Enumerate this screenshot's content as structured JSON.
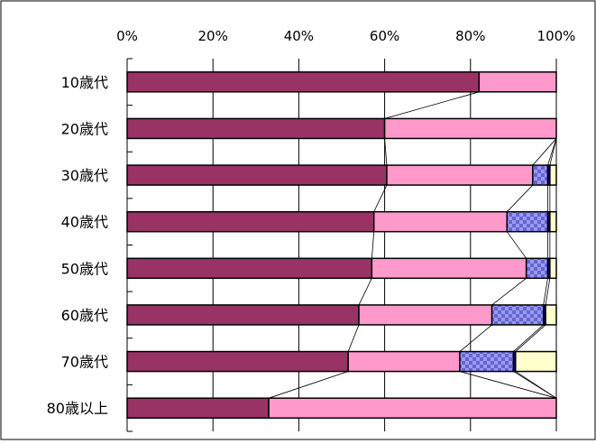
{
  "chart_data": {
    "type": "bar",
    "orientation": "horizontal",
    "stacked": true,
    "percent_stacked": true,
    "xlim": [
      0,
      100
    ],
    "x_ticks": [
      0,
      20,
      40,
      60,
      80,
      100
    ],
    "x_tick_labels": [
      "0%",
      "20%",
      "40%",
      "60%",
      "80%",
      "100%"
    ],
    "axis_position": "top",
    "grid": "vertical",
    "legend": "none",
    "series_lines": true,
    "categories": [
      "10歳代",
      "20歳代",
      "30歳代",
      "40歳代",
      "50歳代",
      "60歳代",
      "70歳代",
      "80歳以上"
    ],
    "series": [
      {
        "color": "#993366",
        "pattern": "solid",
        "values": [
          82,
          60,
          60.5,
          57.5,
          57,
          54,
          51.5,
          33
        ]
      },
      {
        "color": "#ff99cc",
        "pattern": "solid",
        "values": [
          18,
          40,
          34,
          31,
          36,
          31,
          26,
          67
        ]
      },
      {
        "color": "#9999ff",
        "pattern": "checker",
        "values": [
          0,
          0,
          3.5,
          9.5,
          5,
          12,
          12.5,
          0
        ]
      },
      {
        "color": "#000080",
        "pattern": "solid",
        "values": [
          0,
          0,
          0.5,
          0.5,
          0.5,
          0.5,
          0.5,
          0
        ]
      },
      {
        "color": "#ffffcc",
        "pattern": "solid",
        "values": [
          0,
          0,
          1.5,
          1.5,
          1.5,
          2.5,
          9.5,
          0
        ]
      }
    ]
  }
}
